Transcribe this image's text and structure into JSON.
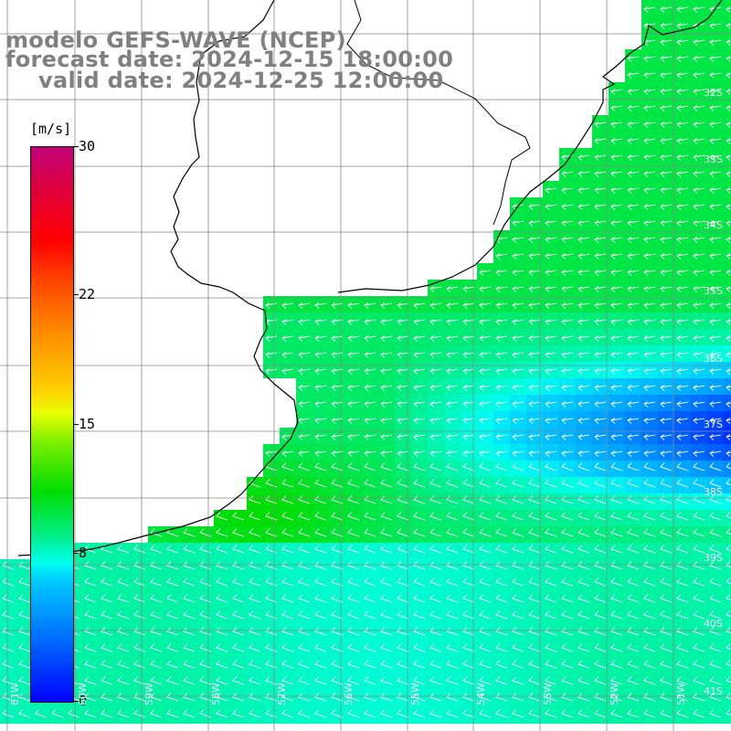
{
  "header": {
    "line1": "modelo GEFS-WAVE (NCEP)",
    "line2": "forecast date: 2024-12-15 18:00:00",
    "line3": "valid date: 2024-12-25 12:00:00"
  },
  "colorbar": {
    "unit": "[m/s]",
    "ticks": [
      "30",
      "22",
      "15",
      "8",
      "0"
    ],
    "tick_values": [
      30,
      22,
      15,
      8,
      0
    ],
    "colors_top_to_bottom": [
      "#c1007a",
      "#ff0000",
      "#ff8800",
      "#ffd200",
      "#00dd00",
      "#00ffee",
      "#00a0ff",
      "#0000ff"
    ]
  },
  "map": {
    "lat_labels": [
      "32S",
      "33S",
      "34S",
      "35S",
      "36S",
      "37S",
      "38S",
      "39S",
      "40S",
      "41S"
    ],
    "lon_labels": [
      "61W",
      "60W",
      "59W",
      "58W",
      "57W",
      "56W",
      "55W",
      "54W",
      "53W",
      "52W",
      "51W"
    ],
    "arrow_direction": "westward",
    "ocean_color_range": [
      "#00ff88",
      "#00ffff",
      "#0000ff"
    ],
    "land_color": "#ffffff",
    "grid_color": "#888888"
  }
}
